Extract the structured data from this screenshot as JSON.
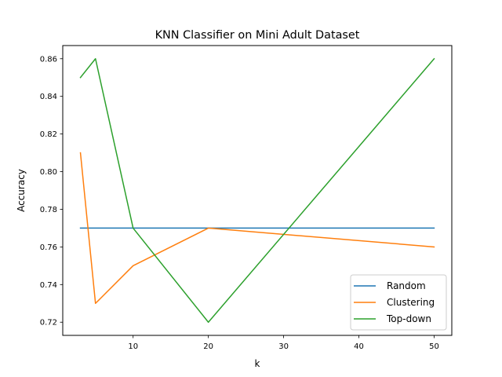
{
  "chart_data": {
    "type": "line",
    "title": "KNN Classifier on Mini Adult Dataset",
    "xlabel": "k",
    "ylabel": "Accuracy",
    "x": [
      3,
      5,
      10,
      20,
      50
    ],
    "xlim": [
      0.65,
      52.35
    ],
    "ylim": [
      0.713,
      0.867
    ],
    "xticks": [
      10,
      20,
      30,
      40,
      50
    ],
    "yticks": [
      0.72,
      0.74,
      0.76,
      0.78,
      0.8,
      0.82,
      0.84,
      0.86
    ],
    "ytick_labels": [
      "0.72",
      "0.74",
      "0.76",
      "0.78",
      "0.80",
      "0.82",
      "0.84",
      "0.86"
    ],
    "grid": false,
    "legend_position": "lower-right",
    "series": [
      {
        "name": "Random",
        "color": "#1f77b4",
        "values": [
          0.77,
          0.77,
          0.77,
          0.77,
          0.77
        ]
      },
      {
        "name": "Clustering",
        "color": "#ff7f0e",
        "values": [
          0.81,
          0.73,
          0.75,
          0.77,
          0.76
        ]
      },
      {
        "name": "Top-down",
        "color": "#2ca02c",
        "values": [
          0.85,
          0.86,
          0.77,
          0.72,
          0.86
        ]
      }
    ]
  }
}
